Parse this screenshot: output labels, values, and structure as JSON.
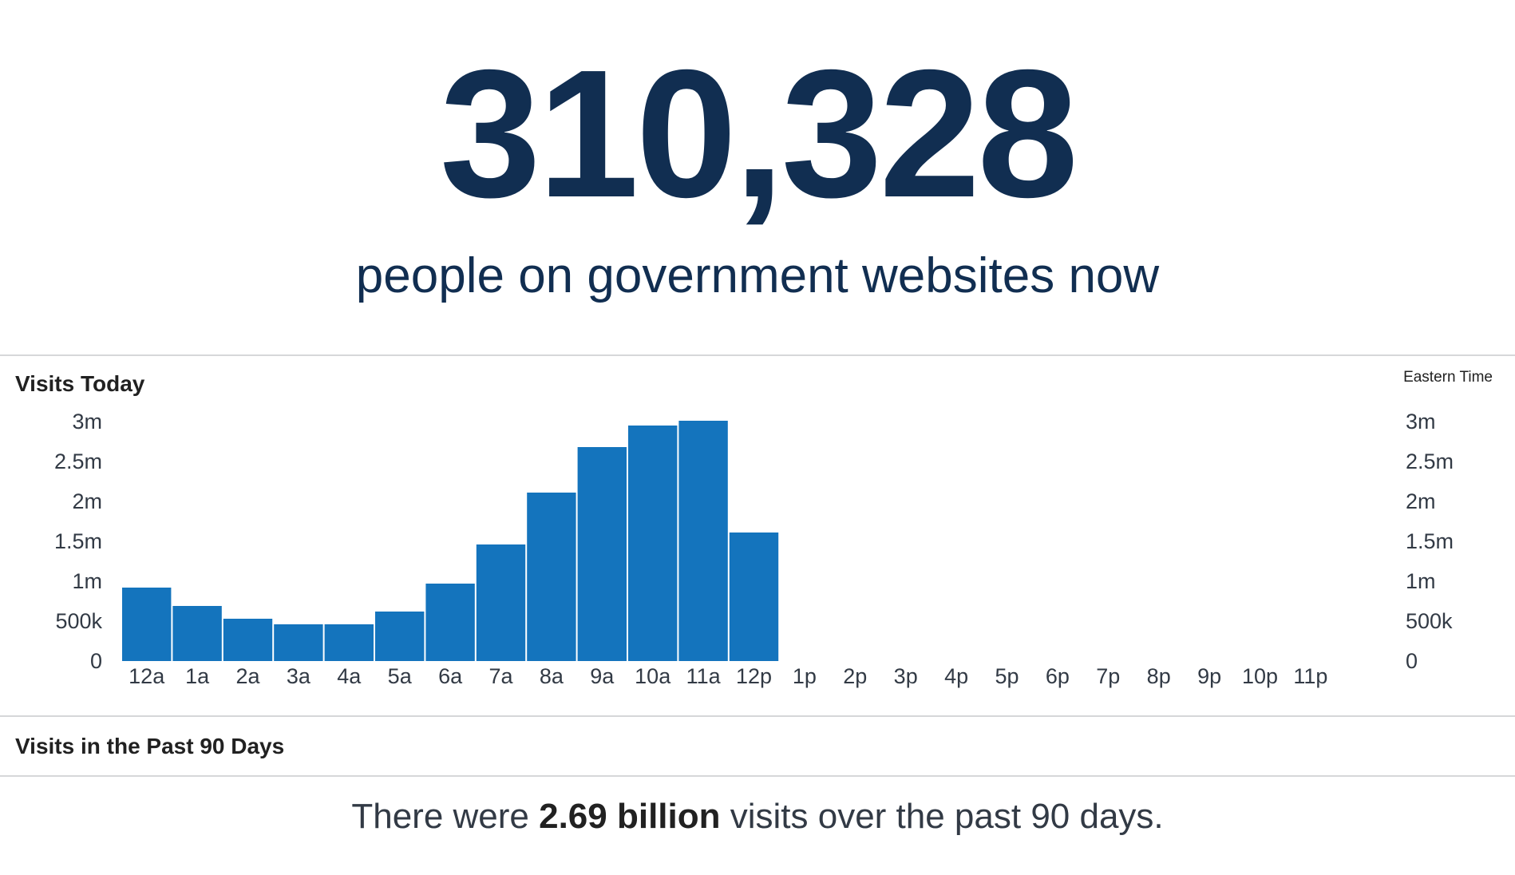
{
  "hero": {
    "count": "310,328",
    "caption": "people on government websites now"
  },
  "visits_today": {
    "title": "Visits Today",
    "timezone_label": "Eastern Time"
  },
  "visits_90": {
    "title": "Visits in the Past 90 Days",
    "summary_prefix": "There were ",
    "summary_value": "2.69 billion",
    "summary_suffix": " visits over the past 90 days."
  },
  "colors": {
    "bar": "#1474bd",
    "heading": "#112e51",
    "rule": "#d6d7d9"
  },
  "chart_data": {
    "type": "bar",
    "title": "Visits Today",
    "categories": [
      "12a",
      "1a",
      "2a",
      "3a",
      "4a",
      "5a",
      "6a",
      "7a",
      "8a",
      "9a",
      "10a",
      "11a",
      "12p",
      "1p",
      "2p",
      "3p",
      "4p",
      "5p",
      "6p",
      "7p",
      "8p",
      "9p",
      "10p",
      "11p"
    ],
    "values": [
      920000,
      690000,
      530000,
      460000,
      460000,
      620000,
      970000,
      1460000,
      2110000,
      2680000,
      2950000,
      3010000,
      1610000,
      null,
      null,
      null,
      null,
      null,
      null,
      null,
      null,
      null,
      null,
      null
    ],
    "ylim": [
      0,
      3000000
    ],
    "y_ticks": [
      {
        "value": 0,
        "label": "0"
      },
      {
        "value": 500000,
        "label": "500k"
      },
      {
        "value": 1000000,
        "label": "1m"
      },
      {
        "value": 1500000,
        "label": "1.5m"
      },
      {
        "value": 2000000,
        "label": "2m"
      },
      {
        "value": 2500000,
        "label": "2.5m"
      },
      {
        "value": 3000000,
        "label": "3m"
      }
    ],
    "y_axes": "left and right",
    "grid": false,
    "legend": "none"
  }
}
